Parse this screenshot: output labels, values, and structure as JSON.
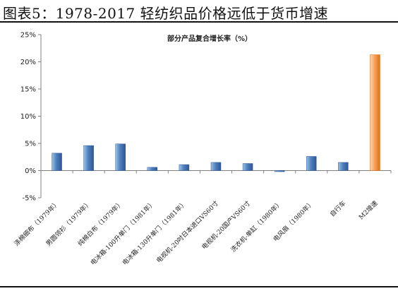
{
  "figure_title": "图表5：1978-2017 轻纺织品价格远低于货币增速",
  "chart_data": {
    "type": "bar",
    "title": "部分产品复合增长率（%）",
    "categories": [
      "涤棉细布（1979年）",
      "男圆领衫（1979年）",
      "纯棉白布（1979年）",
      "电冰箱-100升单门（1981年）",
      "电冰箱-130升单门（1981年）",
      "电视机-20吋日本进口VS60寸",
      "电视机-20国产VS60寸",
      "洗衣机-单缸（1980年）",
      "电风扇（1980年）",
      "自行车",
      "M2增速"
    ],
    "values": [
      3.2,
      4.6,
      4.9,
      0.6,
      1.1,
      1.5,
      1.3,
      -0.2,
      2.6,
      1.5,
      21.3
    ],
    "ylim": [
      -5,
      25
    ],
    "yticks": [
      -5,
      0,
      5,
      10,
      15,
      20,
      25
    ],
    "ytick_labels": [
      "-5%",
      "0%",
      "5%",
      "10%",
      "15%",
      "20%",
      "25%"
    ],
    "colors": {
      "default_bar": "#4f81bd",
      "default_bar_light": "#9dc3e6",
      "default_bar_dark": "#2f5597",
      "highlight_bar": "#f4a460",
      "highlight_bar_light": "#fcd5b4",
      "highlight_bar_dark": "#e46c0a",
      "axis": "#7f7f7f"
    },
    "highlight_index": 10,
    "grid": false,
    "legend": "none"
  }
}
